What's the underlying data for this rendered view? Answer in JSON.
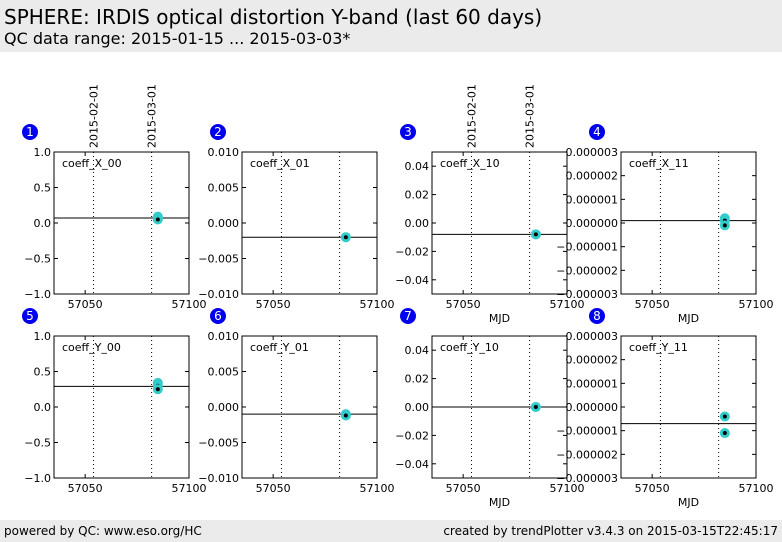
{
  "header": {
    "title": "SPHERE: IRDIS optical distortion Y-band (last 60 days)",
    "subtitle": "QC data range: 2015-01-15 ... 2015-03-03*"
  },
  "footer": {
    "left": "powered by QC: www.eso.org/HC",
    "right": "created by trendPlotter v3.4.3 on 2015-03-15T22:45:17"
  },
  "colors": {
    "marker": "#33cccc",
    "badge": "#0000ee",
    "header_bg": "#ebebeb"
  },
  "chart_data": [
    {
      "type": "scatter",
      "index": "1",
      "label": "coeff_X_00",
      "xlim": [
        57035,
        57100
      ],
      "ylim": [
        -1.0,
        1.0
      ],
      "xticks": [
        "57050",
        "57100"
      ],
      "yticks": [
        "1.0",
        "0.5",
        "0.0",
        "−0.5",
        "−1.0"
      ],
      "xlabel": "",
      "ref_line": 0.07,
      "date_labels": [
        "2015-02-01",
        "2015-03-01"
      ],
      "points": [
        [
          57085,
          0.09
        ],
        [
          57085,
          0.07
        ],
        [
          57085,
          0.05
        ]
      ]
    },
    {
      "type": "scatter",
      "index": "2",
      "label": "coeff_X_01",
      "xlim": [
        57035,
        57100
      ],
      "ylim": [
        -0.01,
        0.01
      ],
      "xticks": [
        "57050",
        "57100"
      ],
      "yticks": [
        "0.010",
        "0.005",
        "0.000",
        "−0.005",
        "−0.010"
      ],
      "xlabel": "",
      "ref_line": -0.002,
      "date_labels": [],
      "points": [
        [
          57085,
          -0.002
        ],
        [
          57085,
          -0.002
        ]
      ]
    },
    {
      "type": "scatter",
      "index": "3",
      "label": "coeff_X_10",
      "xlim": [
        57035,
        57100
      ],
      "ylim": [
        -0.05,
        0.05
      ],
      "xticks": [
        "57050",
        "57100"
      ],
      "yticks": [
        "0.04",
        "0.02",
        "0.00",
        "−0.02",
        "−0.04"
      ],
      "xlabel": "MJD",
      "ref_line": -0.008,
      "date_labels": [
        "2015-02-01",
        "2015-03-01"
      ],
      "points": [
        [
          57085,
          -0.008
        ],
        [
          57085,
          -0.008
        ]
      ]
    },
    {
      "type": "scatter",
      "index": "4",
      "label": "coeff_X_11",
      "xlim": [
        57035,
        57100
      ],
      "ylim": [
        -3e-06,
        3e-06
      ],
      "xticks": [
        "57050",
        "57100"
      ],
      "yticks": [
        "0.000003",
        "0.000002",
        "0.000001",
        "0.000000",
        "−0.000001",
        "−0.000002",
        "−0.000003"
      ],
      "xlabel": "MJD",
      "ref_line": 1e-07,
      "date_labels": [],
      "points": [
        [
          57085,
          2e-07
        ],
        [
          57085,
          1e-07
        ],
        [
          57085,
          -1e-07
        ]
      ]
    },
    {
      "type": "scatter",
      "index": "5",
      "label": "coeff_Y_00",
      "xlim": [
        57035,
        57100
      ],
      "ylim": [
        -1.0,
        1.0
      ],
      "xticks": [
        "57050",
        "57100"
      ],
      "yticks": [
        "1.0",
        "0.5",
        "0.0",
        "−0.5",
        "−1.0"
      ],
      "xlabel": "",
      "ref_line": 0.29,
      "date_labels": [],
      "points": [
        [
          57085,
          0.34
        ],
        [
          57085,
          0.3
        ],
        [
          57085,
          0.25
        ]
      ]
    },
    {
      "type": "scatter",
      "index": "6",
      "label": "coeff_Y_01",
      "xlim": [
        57035,
        57100
      ],
      "ylim": [
        -0.01,
        0.01
      ],
      "xticks": [
        "57050",
        "57100"
      ],
      "yticks": [
        "0.010",
        "0.005",
        "0.000",
        "−0.005",
        "−0.010"
      ],
      "xlabel": "",
      "ref_line": -0.001,
      "date_labels": [],
      "points": [
        [
          57085,
          -0.001
        ],
        [
          57085,
          -0.0012
        ]
      ]
    },
    {
      "type": "scatter",
      "index": "7",
      "label": "coeff_Y_10",
      "xlim": [
        57035,
        57100
      ],
      "ylim": [
        -0.05,
        0.05
      ],
      "xticks": [
        "57050",
        "57100"
      ],
      "yticks": [
        "0.04",
        "0.02",
        "0.00",
        "−0.02",
        "−0.04"
      ],
      "xlabel": "MJD",
      "ref_line": 0.0,
      "date_labels": [],
      "points": [
        [
          57085,
          0.0
        ],
        [
          57085,
          0.0
        ]
      ]
    },
    {
      "type": "scatter",
      "index": "8",
      "label": "coeff_Y_11",
      "xlim": [
        57035,
        57100
      ],
      "ylim": [
        -3e-06,
        3e-06
      ],
      "xticks": [
        "57050",
        "57100"
      ],
      "yticks": [
        "0.000003",
        "0.000002",
        "0.000001",
        "0.000000",
        "−0.000001",
        "−0.000002",
        "−0.000003"
      ],
      "xlabel": "MJD",
      "ref_line": -7e-07,
      "date_labels": [],
      "points": [
        [
          57085,
          -4e-07
        ],
        [
          57085,
          -1.1e-06
        ]
      ]
    }
  ]
}
